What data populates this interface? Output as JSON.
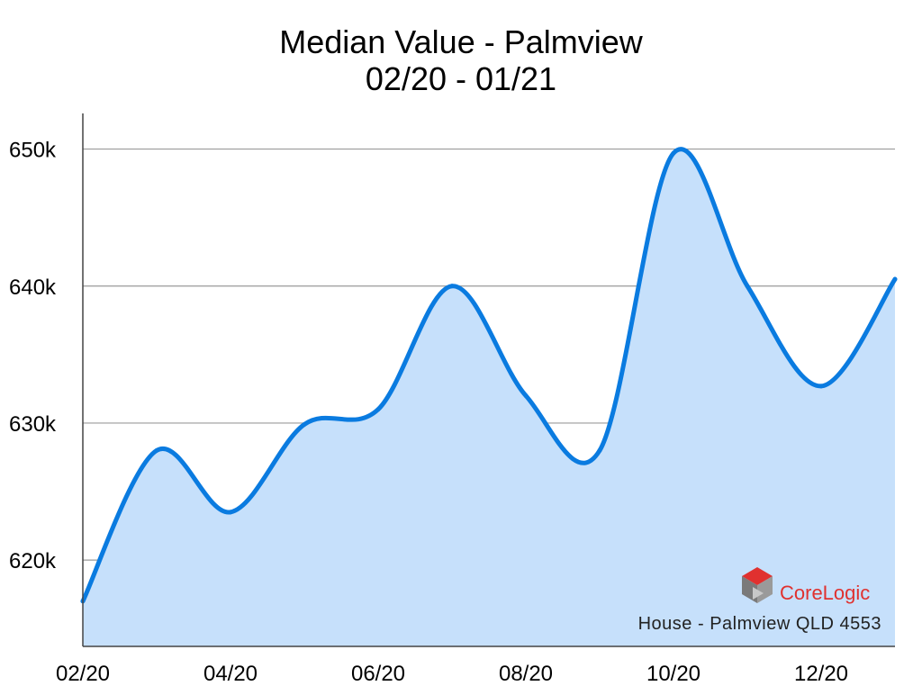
{
  "chart_data": {
    "type": "area",
    "title": "Median Value - Palmview",
    "subtitle": "02/20 - 01/21",
    "xlabel": "",
    "ylabel": "",
    "x": [
      "02/20",
      "03/20",
      "04/20",
      "05/20",
      "06/20",
      "07/20",
      "08/20",
      "09/20",
      "10/20",
      "11/20",
      "12/20",
      "01/21"
    ],
    "x_tick_labels": [
      "02/20",
      "04/20",
      "06/20",
      "08/20",
      "10/20",
      "12/20"
    ],
    "y_tick_values": [
      620000,
      630000,
      640000,
      650000
    ],
    "y_tick_labels": [
      "620k",
      "630k",
      "640k",
      "650k"
    ],
    "ylim": [
      613700,
      652600
    ],
    "grid": true,
    "series": [
      {
        "values": [
          617000,
          628000,
          623500,
          629900,
          631000,
          640000,
          632000,
          628000,
          649700,
          640000,
          632700,
          640500
        ]
      }
    ],
    "line_color": "#0a7be0",
    "fill_color": "#c6e0fb",
    "annotation": "House - Palmview QLD 4553",
    "logo_text": "CoreLogic"
  }
}
